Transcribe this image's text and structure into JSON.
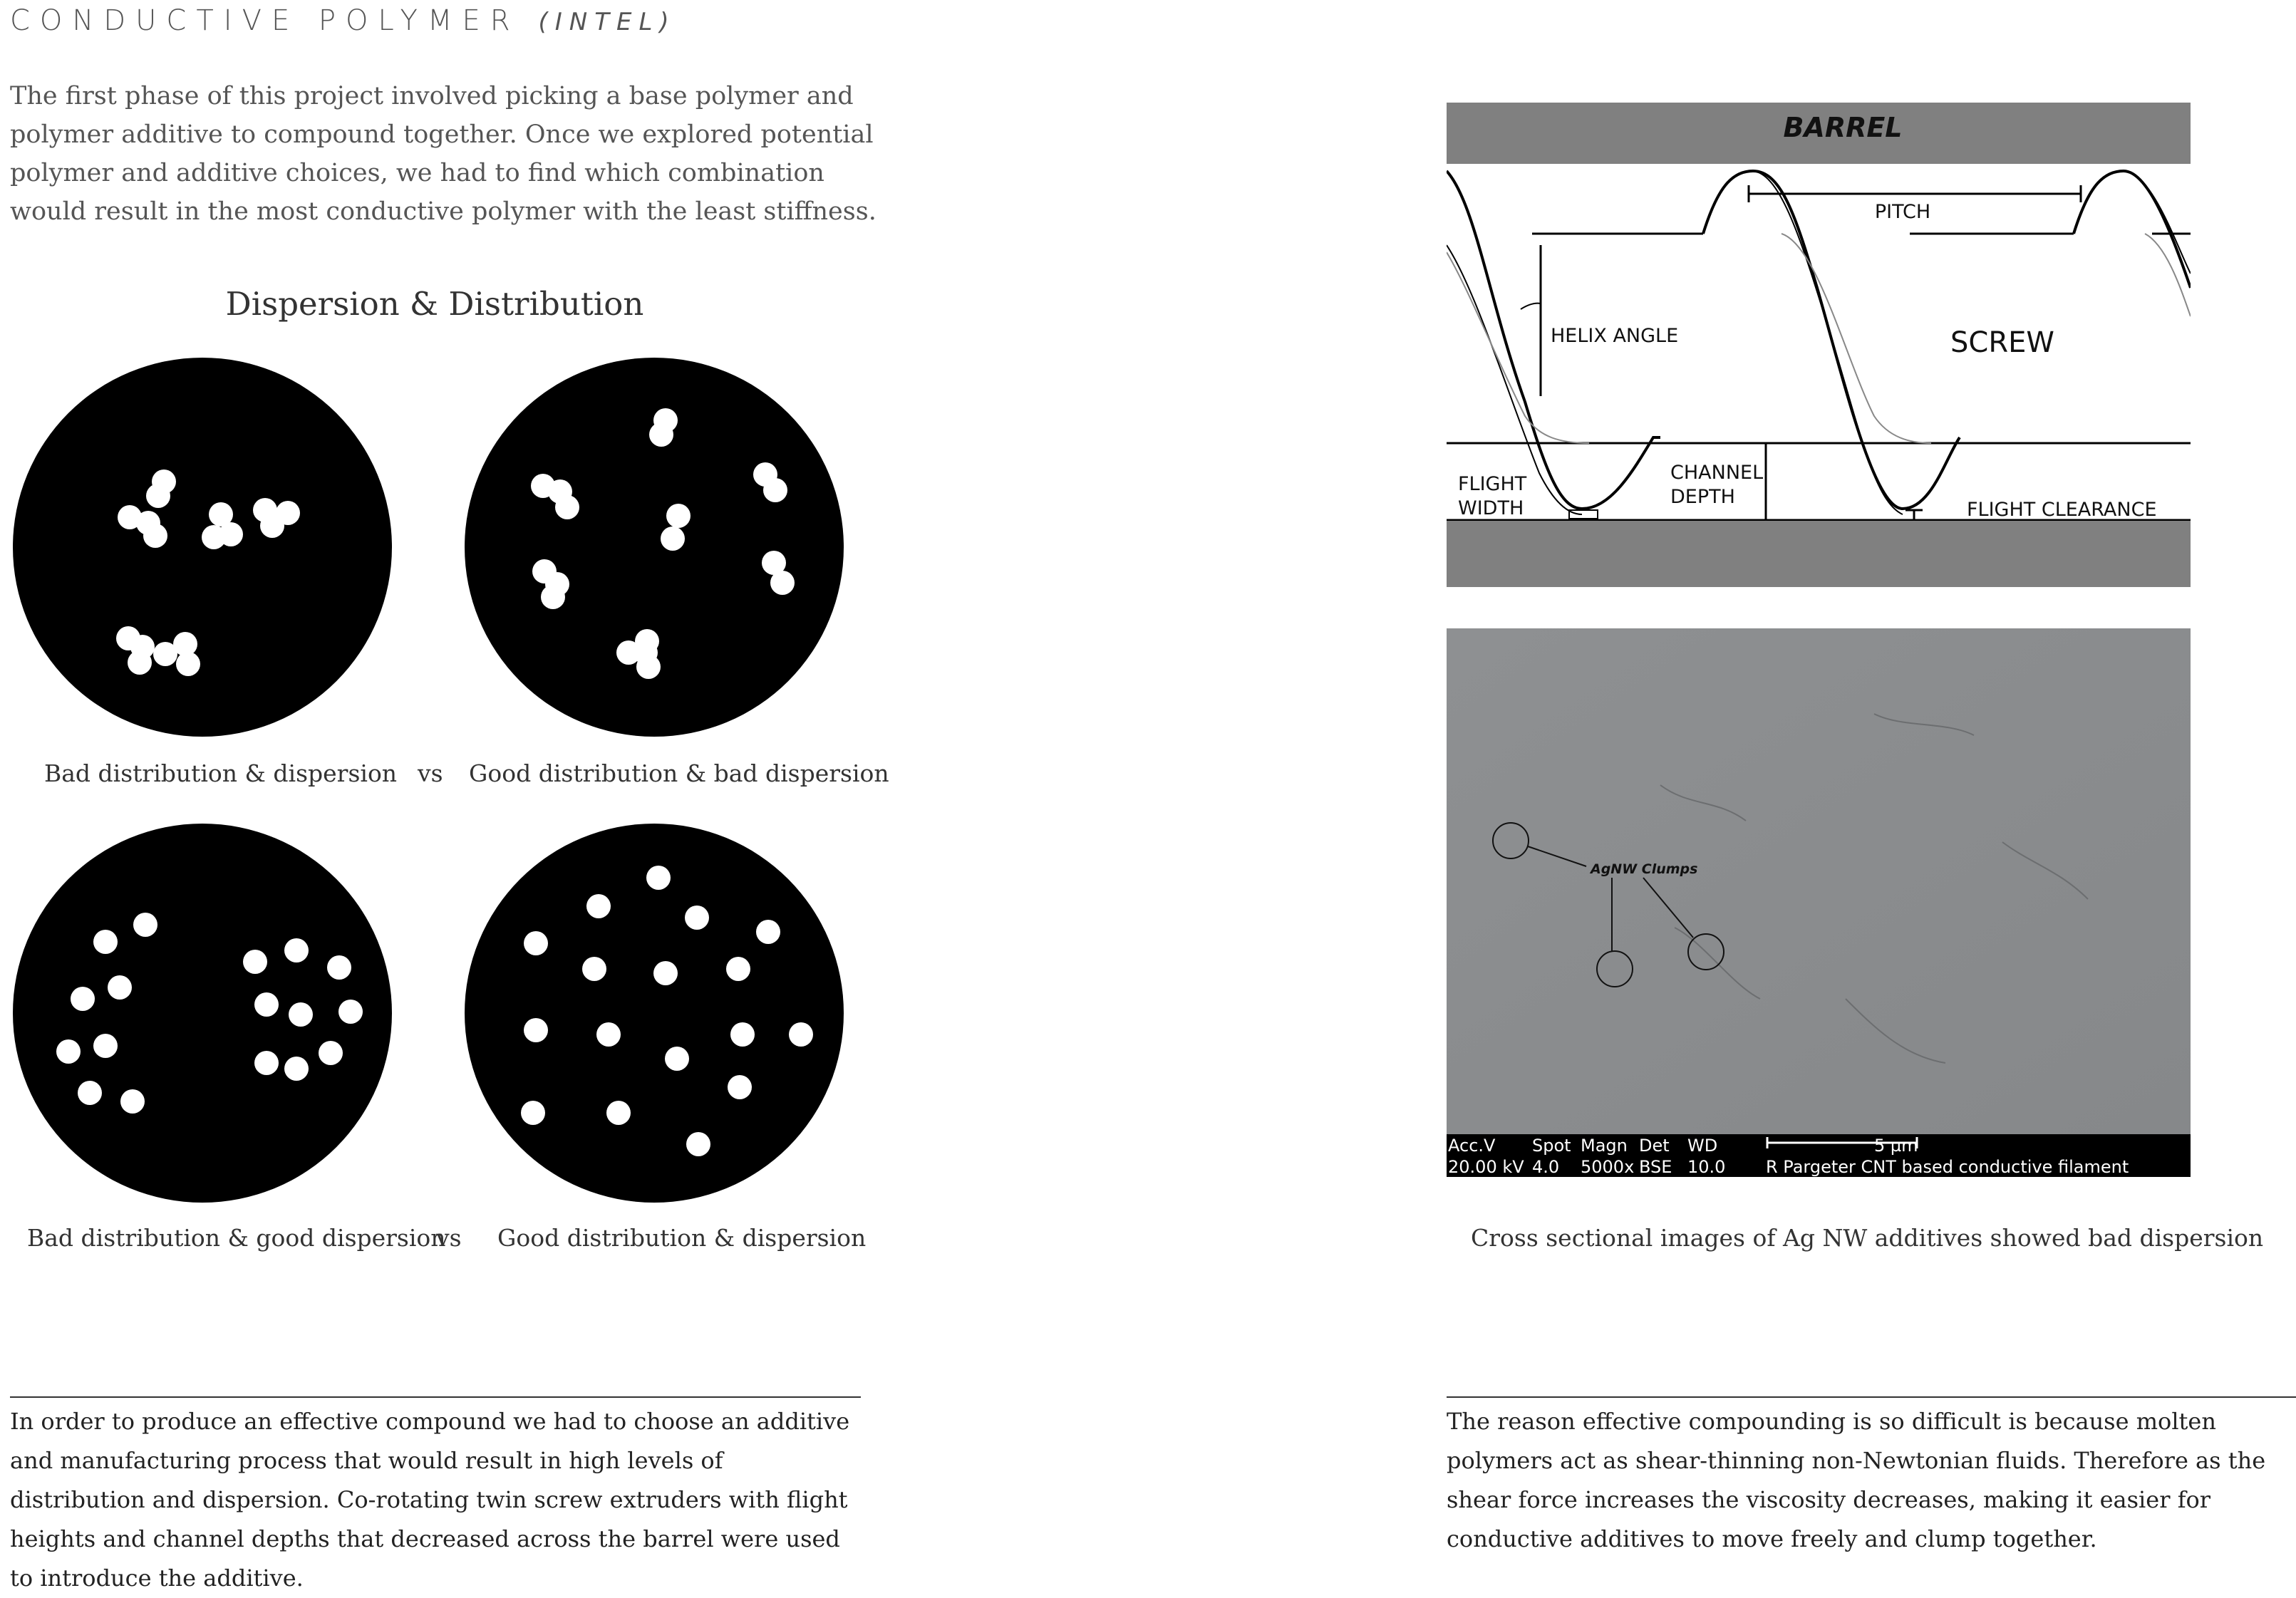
{
  "header": {
    "title": "CONDUCTIVE POLYMER",
    "subtitle": "(INTEL)"
  },
  "intro": "The first phase of this project involved picking a base polymer and polymer additive to compound together. Once we explored potential polymer and additive choices, we had to find which combination would result in the most conductive polymer with the least stiffness.",
  "dispersion_title": "Dispersion & Distribution",
  "captions": {
    "top_left": "Bad distribution & dispersion",
    "top_vs": "vs",
    "top_right": "Good distribution & bad dispersion",
    "bottom_left": "Bad distribution & good dispersion",
    "bottom_vs": "vs",
    "bottom_right": "Good distribution & dispersion",
    "micrograph": "Cross sectional images of Ag NW additives showed bad dispersion"
  },
  "diagram": {
    "barrel": "BARREL",
    "pitch": "PITCH",
    "helix_angle": "HELIX ANGLE",
    "screw": "SCREW",
    "flight_width_1": "FLIGHT",
    "flight_width_2": "WIDTH",
    "channel_depth_1": "CHANNEL",
    "channel_depth_2": "DEPTH",
    "flight_clearance": "FLIGHT CLEARANCE"
  },
  "micrograph": {
    "annotation": "AgNW Clumps",
    "info_row1": [
      "Acc.V",
      "Spot",
      "Magn",
      "Det",
      "WD"
    ],
    "info_row2": [
      "20.00 kV",
      "4.0",
      "5000x",
      "BSE",
      "10.0"
    ],
    "scale_label": "5 µm",
    "sample_label": "R Pargeter CNT based conductive filament"
  },
  "bottom_left_text": "In order to produce an effective compound we had to choose an additive and manufacturing process that would result in high levels of distribution and dispersion.  Co-rotating twin screw extruders with flight heights and channel depths that decreased across the barrel were used to introduce the additive.",
  "bottom_right_text": "The reason effective compounding is so difficult is because molten polymers act as shear-thinning non-Newtonian fluids. Therefore as the shear force increases the viscosity decreases, making it easier for conductive additives to move freely and clump together.",
  "colors": {
    "barrel_gray": "#808080",
    "sem_gray": "#8a8c8e",
    "black": "#000000"
  }
}
